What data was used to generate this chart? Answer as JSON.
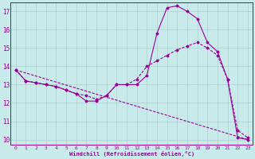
{
  "xlabel": "Windchill (Refroidissement éolien,°C)",
  "bg_color": "#c8eaea",
  "grid_color": "#b0d0d0",
  "line_color": "#990099",
  "xlim_min": -0.5,
  "xlim_max": 23.5,
  "ylim_min": 9.7,
  "ylim_max": 17.5,
  "yticks": [
    10,
    11,
    12,
    13,
    14,
    15,
    16,
    17
  ],
  "xticks": [
    0,
    1,
    2,
    3,
    4,
    5,
    6,
    7,
    8,
    9,
    10,
    11,
    12,
    13,
    14,
    15,
    16,
    17,
    18,
    19,
    20,
    21,
    22,
    23
  ],
  "line1_x": [
    0,
    1,
    2,
    3,
    4,
    5,
    6,
    7,
    8,
    9,
    10,
    11,
    12,
    13,
    14,
    15,
    16,
    17,
    18,
    19,
    20,
    21,
    22,
    23
  ],
  "line1_y": [
    13.8,
    13.2,
    13.1,
    13.0,
    12.9,
    12.7,
    12.5,
    12.1,
    12.1,
    12.4,
    13.0,
    13.0,
    13.0,
    13.5,
    15.8,
    17.2,
    17.3,
    17.0,
    16.6,
    15.3,
    14.8,
    13.3,
    10.1,
    10.0
  ],
  "line2_x": [
    0,
    1,
    2,
    3,
    4,
    5,
    6,
    7,
    8,
    9,
    10,
    11,
    12,
    13,
    14,
    15,
    16,
    17,
    18,
    19,
    20,
    21,
    22,
    23
  ],
  "line2_y": [
    13.8,
    13.2,
    13.1,
    13.0,
    12.9,
    12.7,
    12.5,
    12.4,
    12.2,
    12.4,
    13.0,
    13.0,
    13.3,
    14.0,
    14.3,
    14.6,
    14.9,
    15.1,
    15.3,
    15.0,
    14.6,
    13.3,
    10.5,
    10.1
  ],
  "line3_x": [
    0,
    23
  ],
  "line3_y": [
    13.8,
    10.0
  ]
}
